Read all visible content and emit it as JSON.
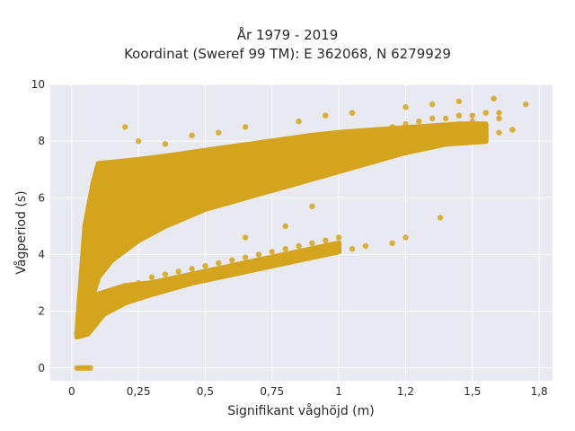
{
  "chart_data": {
    "type": "scatter",
    "title": "År 1979 - 2019",
    "subtitle": "Koordinat (Sweref 99 TM): E 362068, N 6279929",
    "xlabel": "Signifikant våghöjd (m)",
    "ylabel": "Vågperiod (s)",
    "xlim": [
      -0.08,
      1.8
    ],
    "ylim": [
      -0.45,
      10
    ],
    "xticks": [
      {
        "value": 0,
        "label": "0"
      },
      {
        "value": 0.25,
        "label": "0,25"
      },
      {
        "value": 0.5,
        "label": "0,5"
      },
      {
        "value": 0.75,
        "label": "0,75"
      },
      {
        "value": 1.0,
        "label": "1"
      },
      {
        "value": 1.25,
        "label": "1,2"
      },
      {
        "value": 1.5,
        "label": "1,5"
      },
      {
        "value": 1.75,
        "label": "1,8"
      }
    ],
    "yticks": [
      {
        "value": 0,
        "label": "0"
      },
      {
        "value": 2,
        "label": "2"
      },
      {
        "value": 4,
        "label": "4"
      },
      {
        "value": 6,
        "label": "6"
      },
      {
        "value": 8,
        "label": "8"
      },
      {
        "value": 10,
        "label": "10"
      }
    ],
    "grid": true,
    "legend": "none",
    "colors": {
      "marker": "#D4A41C",
      "plot_bg": "#E9E9F1",
      "grid": "#ffffff"
    },
    "series": [
      {
        "points": [
          [
            0.02,
            1.2
          ],
          [
            0.03,
            1.5
          ],
          [
            0.04,
            1.8
          ],
          [
            0.05,
            2.2
          ],
          [
            0.06,
            2.6
          ],
          [
            0.07,
            3.0
          ],
          [
            0.08,
            3.4
          ],
          [
            0.1,
            3.8
          ],
          [
            0.12,
            4.2
          ],
          [
            0.14,
            4.6
          ],
          [
            0.16,
            5.0
          ],
          [
            0.2,
            5.5
          ],
          [
            0.25,
            5.9
          ],
          [
            0.3,
            6.2
          ],
          [
            0.35,
            6.5
          ],
          [
            0.4,
            6.7
          ],
          [
            0.45,
            6.9
          ],
          [
            0.5,
            7.1
          ],
          [
            0.55,
            7.2
          ],
          [
            0.6,
            7.3
          ],
          [
            0.65,
            7.4
          ],
          [
            0.7,
            7.5
          ],
          [
            0.75,
            7.6
          ],
          [
            0.8,
            7.7
          ],
          [
            0.85,
            7.8
          ],
          [
            0.9,
            7.9
          ],
          [
            0.95,
            8.0
          ],
          [
            1.0,
            8.1
          ],
          [
            1.05,
            8.2
          ],
          [
            1.1,
            8.3
          ],
          [
            1.15,
            8.4
          ],
          [
            1.2,
            8.5
          ],
          [
            1.25,
            8.6
          ],
          [
            1.3,
            8.7
          ],
          [
            1.35,
            8.8
          ],
          [
            1.4,
            8.8
          ],
          [
            1.45,
            8.9
          ],
          [
            1.5,
            8.9
          ],
          [
            1.55,
            9.0
          ],
          [
            1.6,
            9.0
          ],
          [
            0.2,
            4.8
          ],
          [
            0.25,
            5.1
          ],
          [
            0.3,
            5.3
          ],
          [
            0.35,
            5.5
          ],
          [
            0.4,
            5.7
          ],
          [
            0.45,
            5.9
          ],
          [
            0.5,
            6.0
          ],
          [
            0.55,
            6.2
          ],
          [
            0.6,
            6.3
          ],
          [
            0.65,
            6.4
          ],
          [
            0.7,
            6.5
          ],
          [
            0.75,
            6.6
          ],
          [
            0.8,
            6.7
          ],
          [
            0.85,
            6.8
          ],
          [
            0.9,
            6.9
          ],
          [
            0.95,
            7.0
          ],
          [
            1.0,
            7.1
          ],
          [
            1.05,
            7.2
          ],
          [
            1.1,
            7.3
          ],
          [
            1.15,
            7.4
          ],
          [
            1.2,
            7.5
          ],
          [
            1.25,
            7.6
          ],
          [
            1.3,
            7.7
          ],
          [
            1.35,
            7.8
          ],
          [
            1.4,
            7.9
          ],
          [
            1.45,
            8.0
          ],
          [
            1.5,
            8.1
          ],
          [
            1.55,
            8.2
          ],
          [
            1.6,
            8.3
          ],
          [
            1.65,
            8.4
          ],
          [
            0.05,
            1.6
          ],
          [
            0.1,
            2.1
          ],
          [
            0.15,
            2.5
          ],
          [
            0.2,
            2.8
          ],
          [
            0.25,
            3.0
          ],
          [
            0.3,
            3.2
          ],
          [
            0.35,
            3.3
          ],
          [
            0.4,
            3.4
          ],
          [
            0.45,
            3.5
          ],
          [
            0.5,
            3.6
          ],
          [
            0.55,
            3.7
          ],
          [
            0.6,
            3.8
          ],
          [
            0.65,
            3.9
          ],
          [
            0.7,
            4.0
          ],
          [
            0.75,
            4.1
          ],
          [
            0.8,
            4.2
          ],
          [
            0.85,
            4.3
          ],
          [
            0.9,
            4.4
          ],
          [
            0.95,
            4.5
          ],
          [
            1.0,
            4.6
          ],
          [
            0.02,
            0.0
          ],
          [
            0.03,
            0.0
          ],
          [
            0.04,
            0.0
          ],
          [
            0.05,
            0.0
          ],
          [
            0.06,
            0.0
          ],
          [
            0.07,
            0.0
          ],
          [
            0.2,
            8.5
          ],
          [
            0.25,
            8.0
          ],
          [
            0.35,
            7.9
          ],
          [
            0.45,
            8.2
          ],
          [
            0.55,
            8.3
          ],
          [
            0.65,
            8.5
          ],
          [
            0.85,
            8.7
          ],
          [
            0.95,
            8.9
          ],
          [
            1.05,
            9.0
          ],
          [
            1.25,
            9.2
          ],
          [
            1.35,
            9.3
          ],
          [
            1.45,
            9.4
          ],
          [
            1.58,
            9.5
          ],
          [
            1.7,
            9.3
          ],
          [
            1.5,
            8.7
          ],
          [
            1.6,
            8.8
          ],
          [
            1.55,
            8.4
          ],
          [
            1.38,
            5.3
          ],
          [
            1.25,
            4.6
          ],
          [
            1.2,
            4.4
          ],
          [
            1.1,
            4.3
          ],
          [
            1.05,
            4.2
          ],
          [
            0.95,
            4.3
          ],
          [
            0.65,
            4.6
          ],
          [
            0.8,
            5.0
          ],
          [
            0.9,
            5.7
          ]
        ]
      }
    ]
  }
}
